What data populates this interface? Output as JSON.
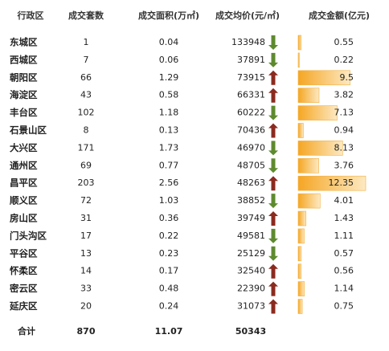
{
  "table": {
    "headers": [
      "行政区",
      "成交套数",
      "成交面积(万㎡)",
      "成交均价(元/㎡)",
      "成交金额(亿元)"
    ],
    "rows": [
      {
        "district": "东城区",
        "deals": 1,
        "area": 0.04,
        "price": 133948,
        "trend": "down",
        "amount": 0.55
      },
      {
        "district": "西城区",
        "deals": 7,
        "area": 0.06,
        "price": 37891,
        "trend": "down",
        "amount": 0.22
      },
      {
        "district": "朝阳区",
        "deals": 66,
        "area": 1.29,
        "price": 73915,
        "trend": "up",
        "amount": 9.5
      },
      {
        "district": "海淀区",
        "deals": 43,
        "area": 0.58,
        "price": 66331,
        "trend": "up",
        "amount": 3.82
      },
      {
        "district": "丰台区",
        "deals": 102,
        "area": 1.18,
        "price": 60222,
        "trend": "down",
        "amount": 7.13
      },
      {
        "district": "石景山区",
        "deals": 8,
        "area": 0.13,
        "price": 70436,
        "trend": "up",
        "amount": 0.94
      },
      {
        "district": "大兴区",
        "deals": 171,
        "area": 1.73,
        "price": 46970,
        "trend": "down",
        "amount": 8.13
      },
      {
        "district": "通州区",
        "deals": 69,
        "area": 0.77,
        "price": 48705,
        "trend": "down",
        "amount": 3.76
      },
      {
        "district": "昌平区",
        "deals": 203,
        "area": 2.56,
        "price": 48263,
        "trend": "up",
        "amount": 12.35
      },
      {
        "district": "顺义区",
        "deals": 72,
        "area": 1.03,
        "price": 38852,
        "trend": "down",
        "amount": 4.01
      },
      {
        "district": "房山区",
        "deals": 31,
        "area": 0.36,
        "price": 39749,
        "trend": "up",
        "amount": 1.43
      },
      {
        "district": "门头沟区",
        "deals": 17,
        "area": 0.22,
        "price": 49581,
        "trend": "down",
        "amount": 1.11
      },
      {
        "district": "平谷区",
        "deals": 13,
        "area": 0.23,
        "price": 25129,
        "trend": "down",
        "amount": 0.57
      },
      {
        "district": "怀柔区",
        "deals": 14,
        "area": 0.17,
        "price": 32540,
        "trend": "up",
        "amount": 0.56
      },
      {
        "district": "密云区",
        "deals": 33,
        "area": 0.48,
        "price": 22390,
        "trend": "up",
        "amount": 1.14
      },
      {
        "district": "延庆区",
        "deals": 20,
        "area": 0.24,
        "price": 31073,
        "trend": "up",
        "amount": 0.75
      }
    ],
    "total": {
      "district": "合计",
      "deals": 870,
      "area": 11.07,
      "price": 50343
    }
  }
}
